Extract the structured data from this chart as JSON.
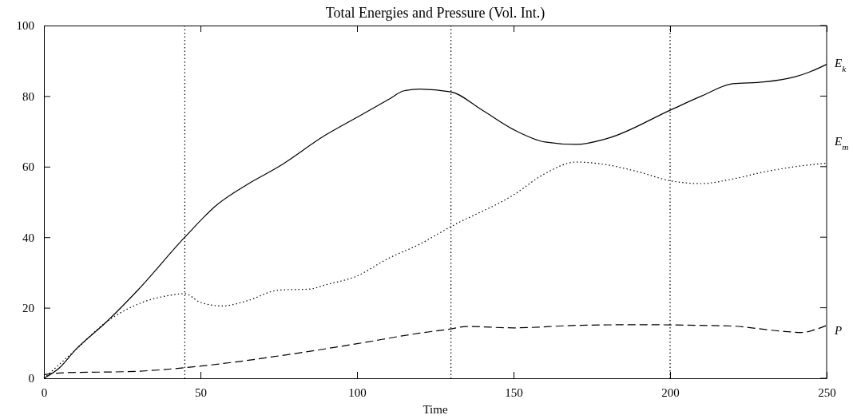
{
  "chart_data": {
    "type": "line",
    "title": "Total Energies and Pressure (Vol. Int.)",
    "xlabel": "Time",
    "xlim": [
      0,
      250
    ],
    "xticks": [
      0,
      50,
      100,
      150,
      200,
      250
    ],
    "ylim": [
      0,
      100
    ],
    "yticks": [
      0,
      20,
      40,
      60,
      80,
      100
    ],
    "grid": false,
    "marker": "none",
    "ref_lines": [
      {
        "axis": "x",
        "value": 45,
        "line_style": "dotted",
        "color": "#000000"
      },
      {
        "axis": "x",
        "value": 130,
        "line_style": "dotted",
        "color": "#000000"
      },
      {
        "axis": "x",
        "value": 200,
        "line_style": "dotted",
        "color": "#000000"
      }
    ],
    "series": [
      {
        "name": "E$_{k}$",
        "color": "#000000",
        "line_style": "solid",
        "x": [
          0,
          5,
          10,
          20,
          30,
          45,
          55,
          65,
          75,
          90,
          100,
          110,
          115,
          120,
          130,
          140,
          150,
          160,
          170,
          180,
          200,
          210,
          220,
          230,
          240,
          245,
          250
        ],
        "values": [
          0,
          3,
          8,
          16,
          25,
          40,
          49,
          55,
          60,
          69,
          74,
          79,
          81.5,
          82,
          81.2,
          76,
          70.5,
          67,
          66.3,
          68,
          76,
          80,
          83.5,
          84,
          85.5,
          87,
          89
        ]
      },
      {
        "name": "E$_{m}$",
        "color": "#000000",
        "line_style": "dotted",
        "x": [
          0,
          10,
          20,
          30,
          40,
          45,
          50,
          57,
          65,
          75,
          85,
          90,
          100,
          110,
          120,
          130,
          150,
          160,
          170,
          180,
          190,
          200,
          210,
          220,
          230,
          240,
          250
        ],
        "values": [
          0,
          8,
          16,
          21,
          23.5,
          24,
          21.5,
          20.5,
          22,
          25,
          25.3,
          26.5,
          29,
          34,
          38,
          43,
          52,
          58,
          61.3,
          60.5,
          58.5,
          56,
          55.2,
          56.5,
          58.5,
          60,
          61
        ]
      },
      {
        "name": "P",
        "color": "#000000",
        "line_style": "dashed",
        "x": [
          0,
          5,
          30,
          45,
          60,
          80,
          100,
          120,
          130,
          135,
          150,
          170,
          190,
          210,
          220,
          235,
          242,
          247,
          250
        ],
        "values": [
          1,
          1.5,
          2,
          3,
          4.5,
          7,
          9.8,
          12.8,
          14,
          14.7,
          14.3,
          15,
          15.2,
          15,
          14.8,
          13.4,
          13,
          14,
          15
        ]
      }
    ]
  }
}
